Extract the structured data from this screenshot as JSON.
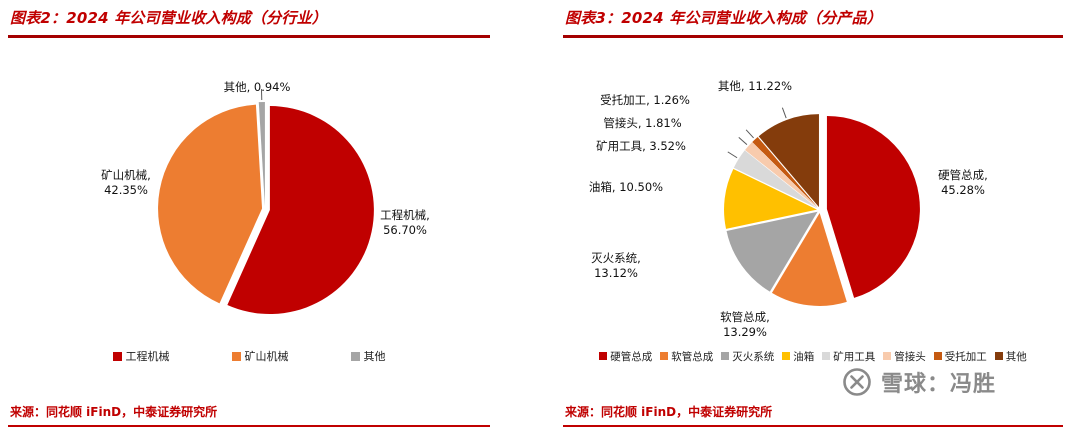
{
  "chart_data": [
    {
      "type": "pie",
      "title": "图表2：2024 年公司营业收入构成（分行业）",
      "categories": [
        "工程机械",
        "矿山机械",
        "其他"
      ],
      "values": [
        56.7,
        42.35,
        0.94
      ],
      "data_labels": [
        "工程机械, 56.70%",
        "矿山机械, 42.35%",
        "其他, 0.94%"
      ],
      "colors": [
        "#C00000",
        "#ED7D31",
        "#A5A5A5"
      ],
      "legend_entries": [
        "工程机械",
        "矿山机械",
        "其他"
      ],
      "legend_position": "bottom",
      "start_angle_deg": 0,
      "direction": "clockwise",
      "source": "来源：同花顺 iFinD，中泰证券研究所"
    },
    {
      "type": "pie",
      "title": "图表3：2024 年公司营业收入构成（分产品）",
      "categories": [
        "硬管总成",
        "软管总成",
        "灭火系统",
        "油箱",
        "矿用工具",
        "管接头",
        "受托加工",
        "其他"
      ],
      "values": [
        45.28,
        13.29,
        13.12,
        10.5,
        3.52,
        1.81,
        1.26,
        11.22
      ],
      "data_labels": [
        "硬管总成, 45.28%",
        "软管总成, 13.29%",
        "灭火系统, 13.12%",
        "油箱, 10.50%",
        "矿用工具, 3.52%",
        "管接头, 1.81%",
        "受托加工, 1.26%",
        "其他, 11.22%"
      ],
      "colors": [
        "#C00000",
        "#ED7D31",
        "#A5A5A5",
        "#FFC000",
        "#D9D9D9",
        "#F8CBAD",
        "#C55A11",
        "#843C0C"
      ],
      "legend_entries": [
        "硬管总成",
        "软管总成",
        "灭火系统",
        "油箱",
        "矿用工具",
        "管接头",
        "受托加工",
        "其他"
      ],
      "legend_position": "bottom",
      "start_angle_deg": 0,
      "direction": "clockwise",
      "source": "来源：同花顺 iFinD，中泰证券研究所"
    }
  ],
  "watermark": {
    "text": "雪球：冯胜",
    "logo": "xueqiu-circle-x-icon"
  },
  "colors": {
    "accent_red": "#C00000",
    "underline_red": "#A40000",
    "label_text": "#111111",
    "watermark_gray": "#8a8a8a"
  }
}
